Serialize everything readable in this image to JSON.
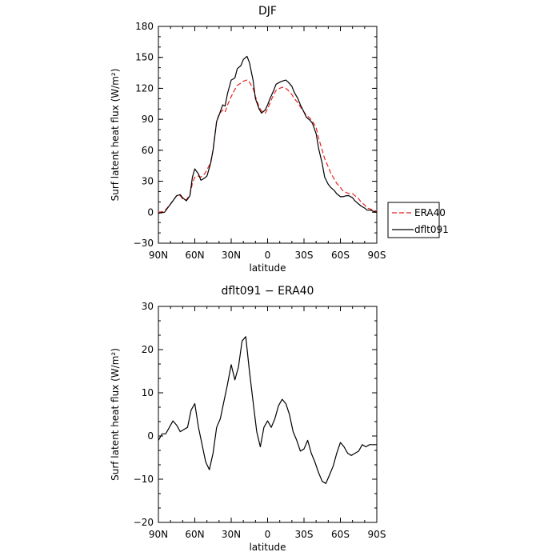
{
  "chart_data": [
    {
      "type": "line",
      "title": "DJF",
      "xlabel": "latitude",
      "ylabel": "Surf latent heat flux (W/m²)",
      "xlim": [
        90,
        -90
      ],
      "ylim": [
        -30,
        180
      ],
      "x_ticks": [
        90,
        60,
        30,
        0,
        -30,
        -60,
        -90
      ],
      "x_tick_labels": [
        "90N",
        "60N",
        "30N",
        "0",
        "30S",
        "60S",
        "90S"
      ],
      "y_ticks": [
        -30,
        0,
        30,
        60,
        90,
        120,
        150,
        180
      ],
      "y_tick_labels": [
        "−30",
        "0",
        "30",
        "60",
        "90",
        "120",
        "150",
        "180"
      ],
      "x": [
        90,
        85,
        80,
        75,
        72,
        70,
        67,
        64,
        62,
        60,
        57,
        55,
        52,
        50,
        47,
        45,
        42,
        40,
        37,
        35,
        33,
        30,
        27,
        25,
        22,
        20,
        17,
        15,
        12,
        10,
        7,
        5,
        2,
        0,
        -2,
        -5,
        -7,
        -10,
        -12,
        -15,
        -17,
        -20,
        -22,
        -25,
        -27,
        -30,
        -32,
        -35,
        -37,
        -40,
        -42,
        -45,
        -47,
        -50,
        -52,
        -55,
        -57,
        -60,
        -62,
        -65,
        -67,
        -70,
        -72,
        -75,
        -77,
        -80,
        -82,
        -85,
        -87,
        -90
      ],
      "series": [
        {
          "name": "ERA40",
          "color": "#e8231f",
          "dash": "dashed",
          "values": [
            0,
            1,
            8,
            16,
            16,
            13,
            12,
            17,
            28,
            34,
            35,
            34,
            37,
            41,
            48,
            60,
            88,
            95,
            99,
            97,
            104,
            112,
            119,
            123,
            125,
            127,
            128,
            126,
            120,
            112,
            102,
            98,
            96,
            100,
            106,
            114,
            118,
            120,
            121,
            120,
            118,
            114,
            110,
            106,
            102,
            97,
            94,
            91,
            88,
            82,
            72,
            60,
            52,
            44,
            38,
            32,
            28,
            24,
            21,
            19,
            18,
            18,
            16,
            13,
            10,
            7,
            4,
            3,
            2,
            1
          ]
        },
        {
          "name": "dflt091",
          "color": "#000000",
          "dash": "solid",
          "values": [
            -1,
            0,
            8,
            16,
            17,
            14,
            11,
            16,
            34,
            42,
            37,
            31,
            33,
            35,
            47,
            60,
            88,
            94,
            104,
            103,
            115,
            128,
            130,
            139,
            142,
            148,
            151,
            145,
            128,
            110,
            100,
            96,
            99,
            104,
            110,
            118,
            124,
            126,
            127,
            128,
            126,
            122,
            116,
            110,
            104,
            97,
            92,
            89,
            86,
            76,
            62,
            47,
            34,
            27,
            24,
            21,
            18,
            15,
            15,
            16,
            16,
            14,
            11,
            8,
            6,
            4,
            2,
            2,
            1,
            0
          ]
        }
      ],
      "legend": {
        "position": "right",
        "entries": [
          "ERA40",
          "dflt091"
        ]
      },
      "grid": false
    },
    {
      "type": "line",
      "title": "dflt091 − ERA40",
      "xlabel": "latitude",
      "ylabel": "Surf latent heat flux (W/m²)",
      "xlim": [
        90,
        -90
      ],
      "ylim": [
        -20,
        30
      ],
      "x_ticks": [
        90,
        60,
        30,
        0,
        -30,
        -60,
        -90
      ],
      "x_tick_labels": [
        "90N",
        "60N",
        "30N",
        "0",
        "30S",
        "60S",
        "90S"
      ],
      "y_ticks": [
        -20,
        -10,
        0,
        10,
        20,
        30
      ],
      "y_tick_labels": [
        "−20",
        "−10",
        "0",
        "10",
        "20",
        "30"
      ],
      "x": [
        90,
        87,
        84,
        81,
        78,
        75,
        72,
        69,
        66,
        63,
        60,
        57,
        54,
        51,
        48,
        45,
        42,
        39,
        36,
        33,
        30,
        27,
        24,
        21,
        18,
        15,
        12,
        9,
        6,
        3,
        0,
        -3,
        -6,
        -9,
        -12,
        -15,
        -18,
        -21,
        -24,
        -27,
        -30,
        -33,
        -36,
        -39,
        -42,
        -45,
        -48,
        -51,
        -54,
        -57,
        -60,
        -63,
        -66,
        -69,
        -72,
        -75,
        -78,
        -81,
        -84,
        -87,
        -90
      ],
      "series": [
        {
          "name": "dflt091 − ERA40",
          "color": "#000000",
          "dash": "solid",
          "values": [
            -1,
            0.5,
            0.5,
            2,
            3.5,
            2.5,
            1,
            1.5,
            2,
            6,
            7.5,
            2,
            -2,
            -6,
            -7.8,
            -4,
            2,
            4,
            8,
            12,
            16.5,
            13,
            16,
            22,
            23,
            15,
            8,
            1,
            -2.5,
            2,
            3.5,
            2,
            4,
            7,
            8.5,
            7.5,
            5,
            1,
            -1,
            -3.5,
            -3,
            -1,
            -4,
            -6,
            -8.5,
            -10.5,
            -11,
            -9,
            -7,
            -4,
            -1.5,
            -2.5,
            -4,
            -4.5,
            -4,
            -3.5,
            -2,
            -2.5,
            -2,
            -2,
            -2
          ]
        }
      ],
      "grid": false
    }
  ]
}
